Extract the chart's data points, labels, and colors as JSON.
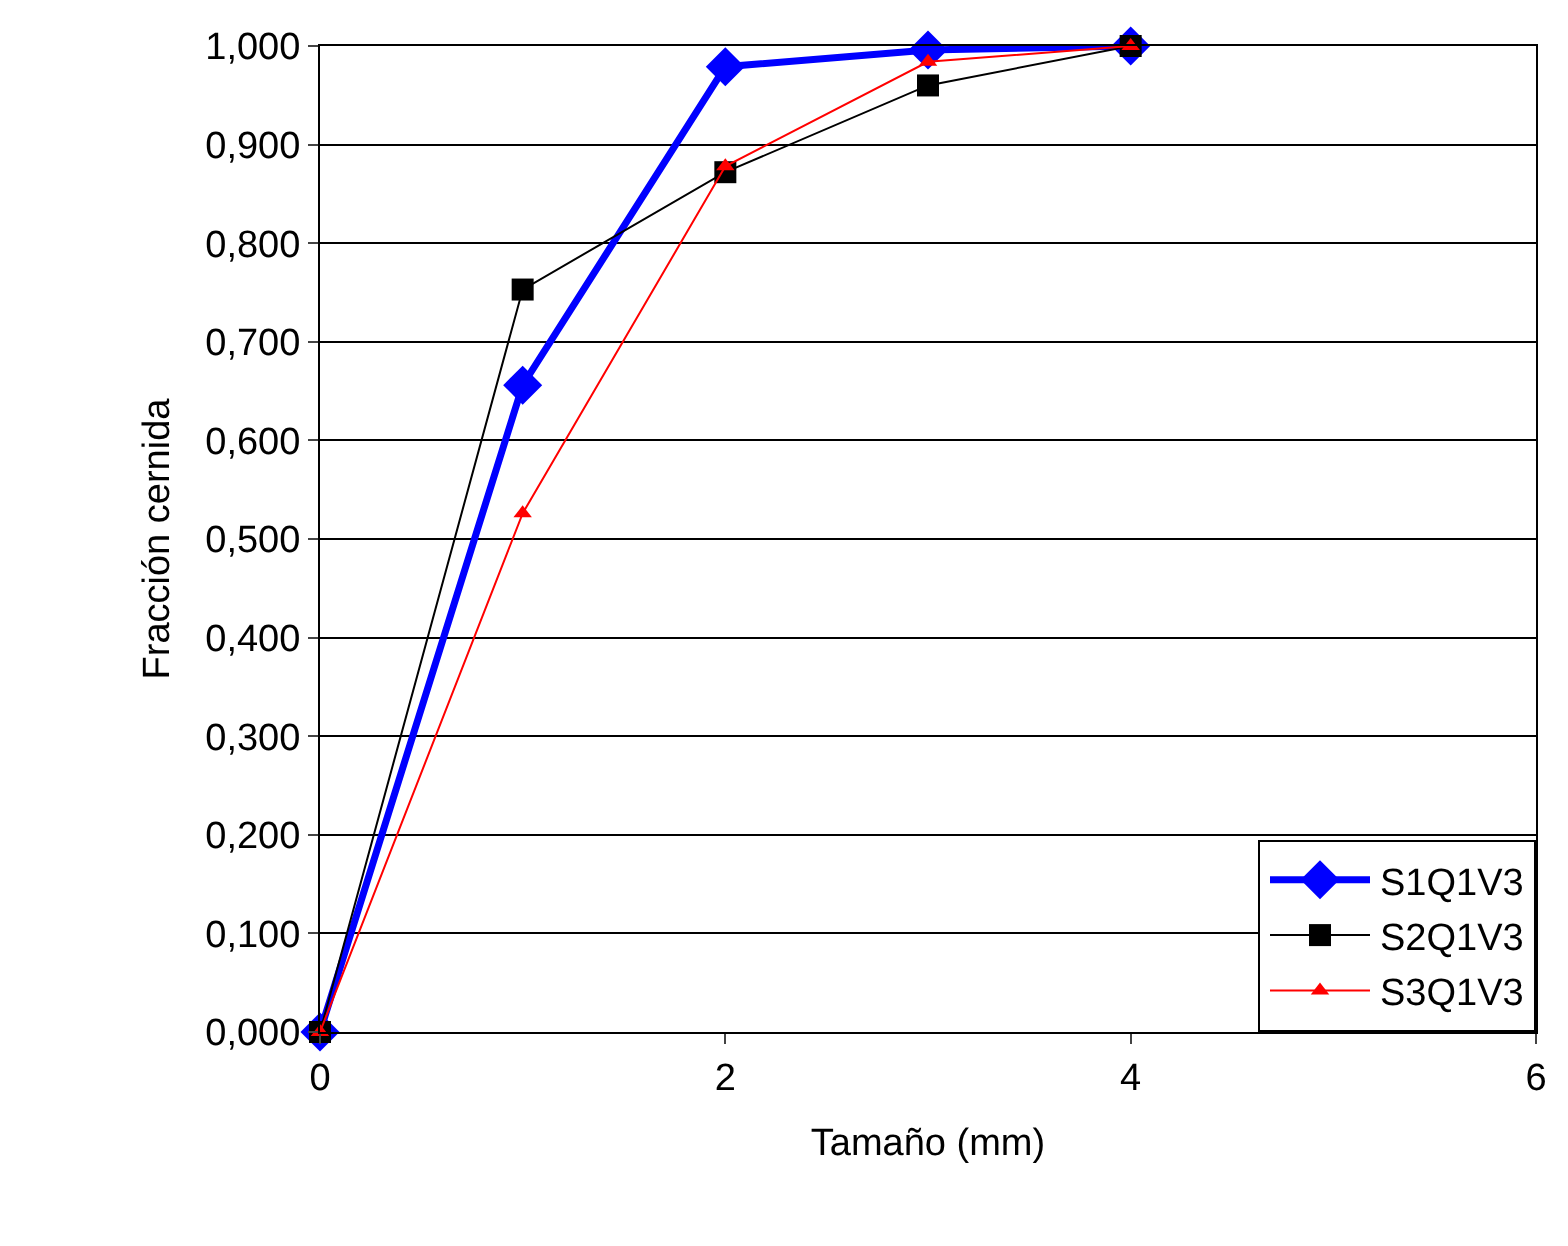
{
  "chart_data": {
    "type": "line",
    "xlabel": "Tamaño (mm)",
    "ylabel": "Fracción cernida",
    "x": [
      0,
      1,
      2,
      3,
      4
    ],
    "series": [
      {
        "name": "S1Q1V3",
        "color": "#0000ff",
        "marker": "diamond",
        "values": [
          0,
          0.656,
          0.979,
          0.996,
          1.0
        ]
      },
      {
        "name": "S2Q1V3",
        "color": "#000000",
        "marker": "square",
        "values": [
          0,
          0.753,
          0.872,
          0.96,
          1.0
        ]
      },
      {
        "name": "S3Q1V3",
        "color": "#ff0000",
        "marker": "triangle",
        "values": [
          0,
          0.526,
          0.878,
          0.984,
          1.0
        ]
      }
    ],
    "xlim": [
      0,
      6
    ],
    "xticks": [
      0,
      2,
      4,
      6
    ],
    "ylim": [
      0,
      1
    ],
    "yticks": [
      {
        "value": 0,
        "label": "0,000"
      },
      {
        "value": 0.1,
        "label": "0,100"
      },
      {
        "value": 0.2,
        "label": "0,200"
      },
      {
        "value": 0.3,
        "label": "0,300"
      },
      {
        "value": 0.4,
        "label": "0,400"
      },
      {
        "value": 0.5,
        "label": "0,500"
      },
      {
        "value": 0.6,
        "label": "0,600"
      },
      {
        "value": 0.7,
        "label": "0,700"
      },
      {
        "value": 0.8,
        "label": "0,800"
      },
      {
        "value": 0.9,
        "label": "0,900"
      },
      {
        "value": 1,
        "label": "1,000"
      }
    ],
    "grid": "y",
    "legend": "bottom right",
    "line_style": "solid"
  }
}
